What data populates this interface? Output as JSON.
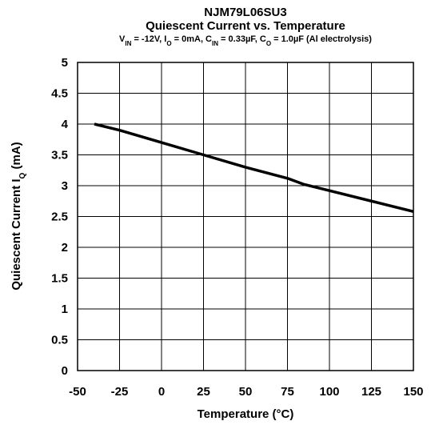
{
  "chart_data": {
    "type": "line",
    "title": "NJM79L06SU3",
    "subtitle": "Quiescent Current vs. Temperature",
    "conditions": [
      "V",
      "IN",
      " = -12V, I",
      "O",
      " = 0mA, C",
      "IN",
      " = 0.33µF, C",
      "O",
      " = 1.0µF (Al electrolysis)"
    ],
    "x_label": "Temperature (°C)",
    "y_label": [
      "Quiescent Current I",
      "Q",
      " (mA)"
    ],
    "x": [
      -40,
      -25,
      0,
      25,
      50,
      75,
      85,
      100,
      125,
      150
    ],
    "series": [
      {
        "name": "IQ",
        "color": "#000000",
        "values": [
          4.0,
          3.9,
          3.7,
          3.5,
          3.3,
          3.12,
          3.02,
          2.92,
          2.75,
          2.58
        ]
      }
    ],
    "xlim": [
      -50,
      150
    ],
    "xticks": [
      -50,
      -25,
      0,
      25,
      50,
      75,
      100,
      125,
      150
    ],
    "ylim": [
      0,
      5
    ],
    "yticks": [
      0,
      0.5,
      1,
      1.5,
      2,
      2.5,
      3,
      3.5,
      4,
      4.5,
      5
    ],
    "grid": true
  }
}
